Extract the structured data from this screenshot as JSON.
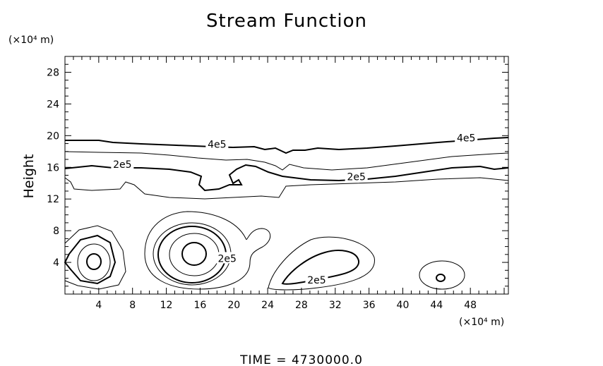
{
  "chart_data": {
    "type": "contour",
    "title": "Stream Function",
    "xlabel": "",
    "ylabel": "Height",
    "x_unit": "(×10⁴ m)",
    "y_unit": "(×10⁴ m)",
    "xlim": [
      0,
      52.5
    ],
    "ylim": [
      0,
      30
    ],
    "xticks": [
      4,
      8,
      12,
      16,
      20,
      24,
      28,
      32,
      36,
      40,
      44,
      48
    ],
    "yticks": [
      4,
      8,
      12,
      16,
      20,
      24,
      28
    ],
    "grid": false,
    "contour_labels": [
      {
        "text": "4e5",
        "x": 18,
        "y": 18.9
      },
      {
        "text": "4e5",
        "x": 47.5,
        "y": 19.7
      },
      {
        "text": "2e5",
        "x": 6.8,
        "y": 16.4
      },
      {
        "text": "2e5",
        "x": 34.5,
        "y": 14.8
      },
      {
        "text": "2e5",
        "x": 19.2,
        "y": 4.5
      },
      {
        "text": "2e5",
        "x": 29.8,
        "y": 1.8
      }
    ],
    "footer": "TIME  =  4730000.0"
  }
}
